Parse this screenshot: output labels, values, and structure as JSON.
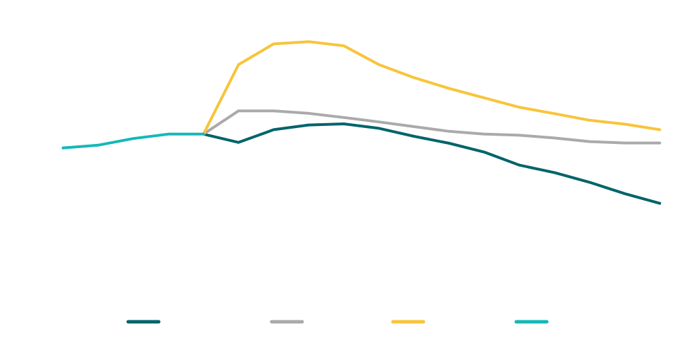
{
  "chart_data": {
    "type": "line",
    "title": "",
    "xlabel": "",
    "ylabel": "",
    "ylim": [
      0,
      100
    ],
    "grid": false,
    "legend_position": "bottom",
    "series": [
      {
        "color": "#00646a",
        "points": [
          [
            5,
            57.8
          ],
          [
            6,
            54.8
          ],
          [
            7,
            59.4
          ],
          [
            8,
            61.1
          ],
          [
            9,
            61.5
          ],
          [
            10,
            59.9
          ],
          [
            11,
            57.0
          ],
          [
            12,
            54.5
          ],
          [
            13,
            51.3
          ],
          [
            14,
            46.6
          ],
          [
            15,
            43.9
          ],
          [
            16,
            40.4
          ],
          [
            17,
            36.3
          ],
          [
            18,
            32.8
          ]
        ]
      },
      {
        "color": "#aaaaaa",
        "points": [
          [
            5,
            57.8
          ],
          [
            6,
            66.2
          ],
          [
            7,
            66.2
          ],
          [
            8,
            65.3
          ],
          [
            9,
            63.8
          ],
          [
            10,
            62.2
          ],
          [
            11,
            60.5
          ],
          [
            12,
            58.8
          ],
          [
            13,
            57.8
          ],
          [
            14,
            57.4
          ],
          [
            15,
            56.4
          ],
          [
            16,
            55.1
          ],
          [
            17,
            54.6
          ],
          [
            18,
            54.6
          ]
        ]
      },
      {
        "color": "#f8c43b",
        "points": [
          [
            5,
            57.8
          ],
          [
            6,
            82.9
          ],
          [
            7,
            90.4
          ],
          [
            8,
            91.2
          ],
          [
            9,
            89.7
          ],
          [
            10,
            82.9
          ],
          [
            11,
            78.2
          ],
          [
            12,
            74.3
          ],
          [
            13,
            70.9
          ],
          [
            14,
            67.5
          ],
          [
            15,
            65.2
          ],
          [
            16,
            62.8
          ],
          [
            17,
            61.4
          ],
          [
            18,
            59.4
          ]
        ]
      },
      {
        "color": "#14b8b8",
        "points": [
          [
            1,
            52.8
          ],
          [
            2,
            53.8
          ],
          [
            3,
            56.2
          ],
          [
            4,
            57.8
          ],
          [
            5,
            57.8
          ]
        ]
      }
    ]
  }
}
